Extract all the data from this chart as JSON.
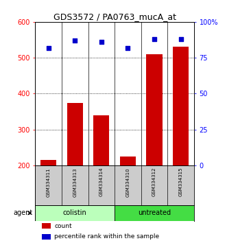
{
  "title": "GDS3572 / PA0763_mucA_at",
  "samples": [
    "GSM334311",
    "GSM334313",
    "GSM334314",
    "GSM334310",
    "GSM334312",
    "GSM334315"
  ],
  "counts": [
    215,
    375,
    340,
    225,
    510,
    530
  ],
  "percentiles": [
    82,
    87,
    86,
    82,
    88,
    88
  ],
  "ylim_left": [
    200,
    600
  ],
  "ylim_right": [
    0,
    100
  ],
  "yticks_left": [
    200,
    300,
    400,
    500,
    600
  ],
  "yticks_right": [
    0,
    25,
    50,
    75,
    100
  ],
  "yticklabels_right": [
    "0",
    "25",
    "50",
    "75",
    "100%"
  ],
  "bar_color": "#cc0000",
  "dot_color": "#0000cc",
  "group_labels": [
    "colistin",
    "untreated"
  ],
  "group_color_light": "#bbffbb",
  "group_color_bright": "#44dd44",
  "label_row_color": "#cccccc",
  "legend_bar_label": "count",
  "legend_dot_label": "percentile rank within the sample",
  "agent_label": "agent",
  "title_fontsize": 9,
  "tick_fontsize": 7,
  "sample_fontsize": 5,
  "group_fontsize": 7,
  "legend_fontsize": 6.5
}
